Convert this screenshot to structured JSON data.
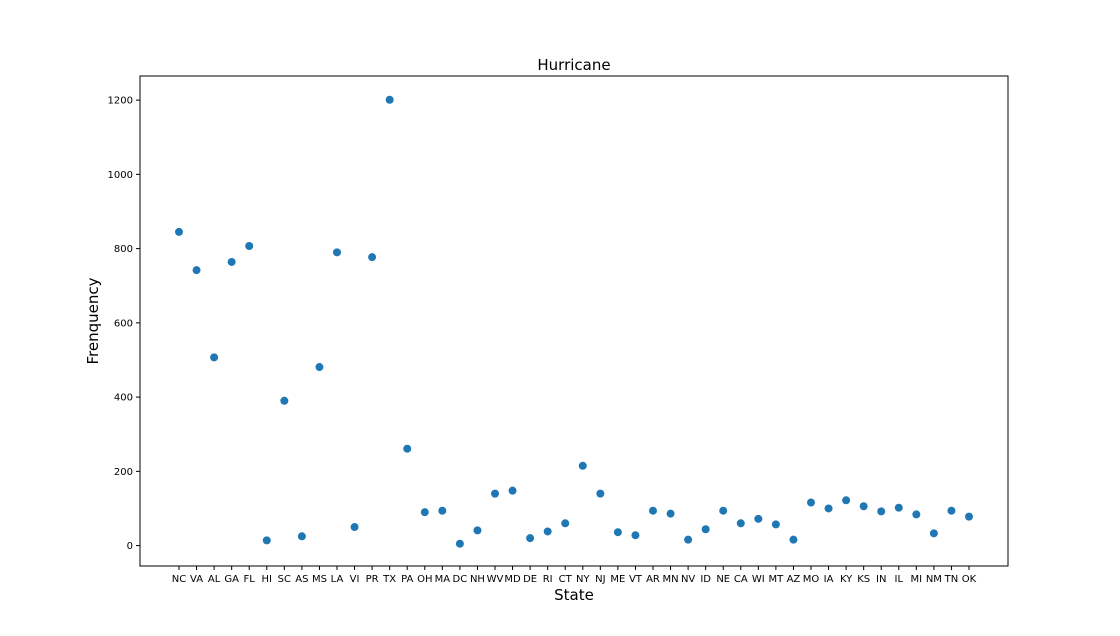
{
  "chart_data": {
    "type": "scatter",
    "title": "Hurricane",
    "xlabel": "State",
    "ylabel": "Frenquency",
    "categories": [
      "NC",
      "VA",
      "AL",
      "GA",
      "FL",
      "HI",
      "SC",
      "AS",
      "MS",
      "LA",
      "VI",
      "PR",
      "TX",
      "PA",
      "OH",
      "MA",
      "DC",
      "NH",
      "WV",
      "MD",
      "DE",
      "RI",
      "CT",
      "NY",
      "NJ",
      "ME",
      "VT",
      "AR",
      "MN",
      "NV",
      "ID",
      "NE",
      "CA",
      "WI",
      "MT",
      "AZ",
      "MO",
      "IA",
      "KY",
      "KS",
      "IN",
      "IL",
      "MI",
      "NM",
      "TN",
      "OK"
    ],
    "values": [
      845,
      742,
      507,
      764,
      807,
      14,
      390,
      25,
      481,
      790,
      50,
      777,
      1201,
      261,
      90,
      94,
      5,
      41,
      140,
      148,
      20,
      38,
      60,
      215,
      140,
      36,
      28,
      94,
      86,
      16,
      44,
      94,
      60,
      72,
      57,
      16,
      116,
      100,
      122,
      106,
      92,
      102,
      84,
      33,
      94,
      78
    ],
    "yticks": [
      0,
      200,
      400,
      600,
      800,
      1000,
      1200
    ],
    "ylim": [
      -55,
      1265
    ],
    "grid": false,
    "marker_color": "#1f77b4"
  }
}
